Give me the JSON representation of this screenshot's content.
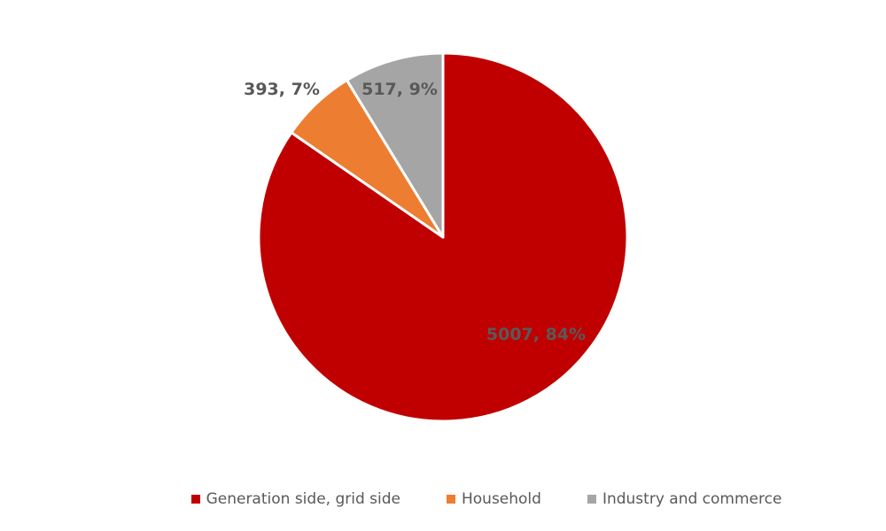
{
  "chart_data": {
    "type": "pie",
    "categories": [
      "Generation side, grid side",
      "Household",
      "Industry and commerce"
    ],
    "values": [
      5007,
      393,
      517
    ],
    "percentages": [
      "84%",
      "7%",
      "9%"
    ],
    "data_labels": [
      "5007, 84%",
      "393, 7%",
      "517, 9%"
    ],
    "colors": [
      "#c00000",
      "#ed7d31",
      "#a5a5a5"
    ],
    "legend_position": "bottom",
    "start_direction": "clockwise from top"
  },
  "legend": {
    "items": [
      {
        "label": "Generation side, grid side",
        "color": "#c00000"
      },
      {
        "label": "Household",
        "color": "#ed7d31"
      },
      {
        "label": "Industry and commerce",
        "color": "#a5a5a5"
      }
    ]
  }
}
